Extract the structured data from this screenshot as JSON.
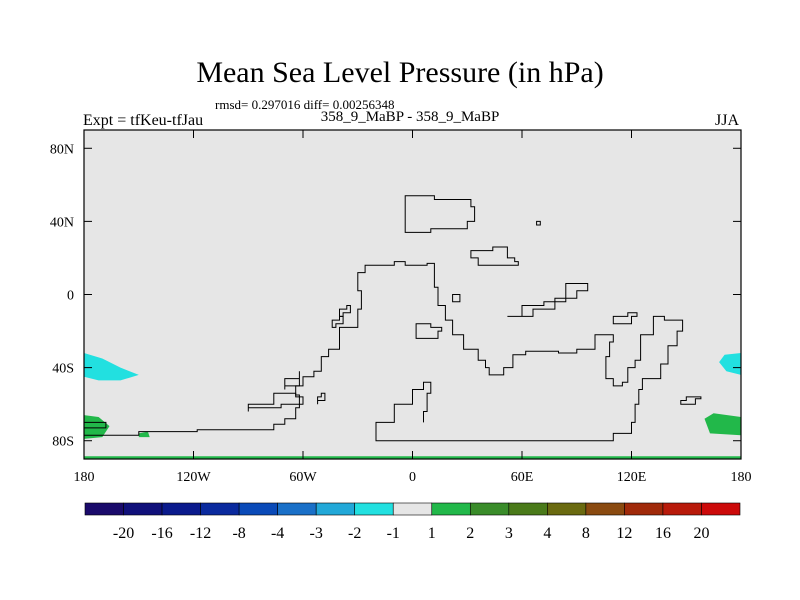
{
  "chart_data": {
    "type": "heatmap",
    "title": "Mean Sea Level Pressure (in hPa)",
    "stats": "rmsd= 0.297016 diff= 0.00256348",
    "left_label": "Expt = tfKeu-tfJau",
    "center_label": "358_9_MaBP - 358_9_MaBP",
    "right_label": "JJA",
    "xlim": [
      -180,
      180
    ],
    "ylim": [
      -90,
      90
    ],
    "x_ticks": [
      {
        "value": -180,
        "label": "180"
      },
      {
        "value": -120,
        "label": "120W"
      },
      {
        "value": -60,
        "label": "60W"
      },
      {
        "value": 0,
        "label": "0"
      },
      {
        "value": 60,
        "label": "60E"
      },
      {
        "value": 120,
        "label": "120E"
      },
      {
        "value": 180,
        "label": "180"
      }
    ],
    "y_ticks": [
      {
        "value": 80,
        "label": "80N"
      },
      {
        "value": 40,
        "label": "40N"
      },
      {
        "value": 0,
        "label": "0"
      },
      {
        "value": -40,
        "label": "40S"
      },
      {
        "value": -80,
        "label": "80S"
      }
    ],
    "colorbar": {
      "labels": [
        "-20",
        "-16",
        "-12",
        "-8",
        "-4",
        "-3",
        "-2",
        "-1",
        "1",
        "2",
        "3",
        "4",
        "8",
        "12",
        "16",
        "20"
      ],
      "colors": [
        "#1a0a6b",
        "#10107a",
        "#0a1a8c",
        "#0a2a9e",
        "#0a4ab8",
        "#1a70c8",
        "#22a8d8",
        "#22e0e0",
        "#e6e6e6",
        "#22b84a",
        "#3a8c2a",
        "#4a7a1a",
        "#6a6a10",
        "#8a4a10",
        "#a02a0a",
        "#b81a0a",
        "#cc0a0a"
      ]
    },
    "background_color": "#e6e6e6",
    "filled_regions": [
      {
        "color": "#22e0e0",
        "points": [
          [
            -180,
            -32
          ],
          [
            -170,
            -35
          ],
          [
            -160,
            -40
          ],
          [
            -150,
            -44
          ],
          [
            -160,
            -47
          ],
          [
            -172,
            -47
          ],
          [
            -180,
            -45
          ]
        ]
      },
      {
        "color": "#22e0e0",
        "points": [
          [
            180,
            -32
          ],
          [
            171,
            -33
          ],
          [
            168,
            -37
          ],
          [
            172,
            -42
          ],
          [
            180,
            -44
          ]
        ]
      },
      {
        "color": "#22b84a",
        "points": [
          [
            -180,
            -66
          ],
          [
            -172,
            -67
          ],
          [
            -166,
            -72
          ],
          [
            -170,
            -78
          ],
          [
            -180,
            -79
          ]
        ]
      },
      {
        "color": "#22b84a",
        "points": [
          [
            -150,
            -76
          ],
          [
            -145,
            -75
          ],
          [
            -144,
            -78
          ],
          [
            -150,
            -78
          ]
        ]
      },
      {
        "color": "#22b84a",
        "points": [
          [
            180,
            -67
          ],
          [
            165,
            -65
          ],
          [
            160,
            -68
          ],
          [
            163,
            -76
          ],
          [
            180,
            -77
          ]
        ]
      },
      {
        "color": "#22b84a",
        "points": [
          [
            -180,
            -88.5
          ],
          [
            180,
            -88.5
          ],
          [
            180,
            -90
          ],
          [
            -180,
            -90
          ]
        ]
      }
    ],
    "contour_lines": [
      [
        [
          -180,
          -70
        ],
        [
          -168,
          -70
        ],
        [
          -168,
          -73
        ],
        [
          -180,
          -73
        ]
      ],
      [
        [
          -180,
          -77
        ],
        [
          -155,
          -77
        ],
        [
          -150,
          -75
        ],
        [
          -130,
          -75
        ],
        [
          -118,
          -74
        ],
        [
          -88,
          -74
        ],
        [
          -76,
          -71
        ],
        [
          -70,
          -68
        ],
        [
          -64,
          -62
        ],
        [
          -62,
          -55
        ],
        [
          -64,
          -50
        ],
        [
          -60,
          -45
        ],
        [
          -54,
          -42
        ],
        [
          -50,
          -34
        ],
        [
          -46,
          -30
        ],
        [
          -40,
          -18
        ],
        [
          -30,
          -8
        ],
        [
          -28,
          2
        ],
        [
          -30,
          12
        ],
        [
          -26,
          16
        ],
        [
          -10,
          18
        ],
        [
          -4,
          16
        ],
        [
          8,
          17
        ],
        [
          12,
          12
        ],
        [
          12,
          4
        ],
        [
          14,
          -6
        ],
        [
          18,
          -14
        ],
        [
          22,
          -22
        ],
        [
          28,
          -30
        ],
        [
          36,
          -36
        ],
        [
          40,
          -40
        ],
        [
          42,
          -44
        ],
        [
          46,
          -44
        ],
        [
          50,
          -40
        ],
        [
          55,
          -33
        ],
        [
          62,
          -31
        ],
        [
          80,
          -32
        ],
        [
          90,
          -30
        ],
        [
          100,
          -22
        ],
        [
          102,
          -22
        ],
        [
          110,
          -26
        ],
        [
          108,
          -34
        ],
        [
          106,
          -46
        ],
        [
          110,
          -50
        ],
        [
          115,
          -48
        ],
        [
          118,
          -40
        ],
        [
          122,
          -36
        ],
        [
          125,
          -22
        ],
        [
          132,
          -12
        ],
        [
          138,
          -14
        ],
        [
          148,
          -20
        ],
        [
          145,
          -28
        ],
        [
          140,
          -38
        ],
        [
          136,
          -46
        ],
        [
          126,
          -52
        ],
        [
          124,
          -60
        ],
        [
          122,
          -70
        ],
        [
          120,
          -76
        ],
        [
          110,
          -80
        ],
        [
          -20,
          -80
        ],
        [
          -20,
          -70
        ],
        [
          -10,
          -60
        ],
        [
          0,
          -52
        ],
        [
          6,
          -48
        ],
        [
          10,
          -54
        ],
        [
          8,
          -64
        ],
        [
          6,
          -70
        ]
      ],
      [
        [
          -4,
          54
        ],
        [
          2,
          54
        ],
        [
          12,
          52
        ],
        [
          28,
          52
        ],
        [
          32,
          48
        ],
        [
          34,
          40
        ],
        [
          30,
          36
        ],
        [
          20,
          36
        ],
        [
          10,
          34
        ],
        [
          -2,
          34
        ],
        [
          -4,
          42
        ]
      ],
      [
        [
          32,
          24
        ],
        [
          38,
          24
        ],
        [
          44,
          26
        ],
        [
          52,
          20
        ],
        [
          56,
          18
        ],
        [
          58,
          16
        ],
        [
          46,
          16
        ],
        [
          36,
          20
        ]
      ],
      [
        [
          68,
          40
        ],
        [
          70,
          40
        ],
        [
          70,
          38
        ],
        [
          68,
          38
        ]
      ],
      [
        [
          22,
          0
        ],
        [
          26,
          0
        ],
        [
          26,
          -4
        ],
        [
          22,
          -4
        ]
      ],
      [
        [
          -40,
          -8
        ],
        [
          -36,
          -6
        ],
        [
          -34,
          -10
        ],
        [
          -38,
          -12
        ]
      ],
      [
        [
          -44,
          -14
        ],
        [
          -40,
          -12
        ],
        [
          -38,
          -16
        ],
        [
          -42,
          -18
        ]
      ],
      [
        [
          2,
          -16
        ],
        [
          10,
          -18
        ],
        [
          16,
          -20
        ],
        [
          14,
          -24
        ],
        [
          6,
          -24
        ],
        [
          2,
          -20
        ]
      ],
      [
        [
          110,
          -12
        ],
        [
          118,
          -10
        ],
        [
          123,
          -12
        ],
        [
          120,
          -16
        ]
      ],
      [
        [
          147,
          -58
        ],
        [
          150,
          -56
        ],
        [
          158,
          -57
        ],
        [
          155,
          -60
        ]
      ],
      [
        [
          52,
          -12
        ],
        [
          60,
          -6
        ],
        [
          72,
          -4
        ],
        [
          84,
          6
        ],
        [
          96,
          2
        ],
        [
          90,
          -2
        ],
        [
          78,
          -8
        ],
        [
          66,
          -12
        ]
      ],
      [
        [
          -90,
          -60
        ],
        [
          -76,
          -58
        ],
        [
          -76,
          -54
        ],
        [
          -64,
          -56
        ],
        [
          -60,
          -60
        ],
        [
          -72,
          -62
        ],
        [
          -90,
          -64
        ]
      ],
      [
        [
          -52,
          -56
        ],
        [
          -50,
          -54
        ],
        [
          -48,
          -58
        ],
        [
          -52,
          -60
        ]
      ],
      [
        [
          -70,
          -46
        ],
        [
          -62,
          -42
        ],
        [
          -62,
          -50
        ],
        [
          -70,
          -52
        ]
      ]
    ]
  }
}
